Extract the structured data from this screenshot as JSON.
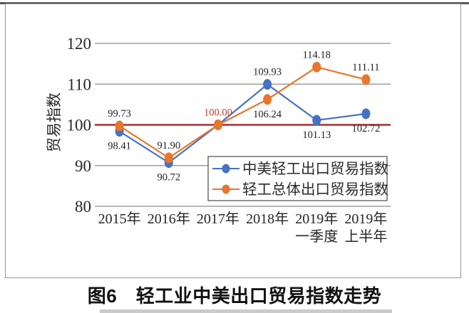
{
  "figure": {
    "caption": "图6　轻工业中美出口贸易指数走势"
  },
  "chart_data": {
    "type": "line",
    "title": "",
    "xlabel": "",
    "ylabel": "贸易指数",
    "ylim": [
      80,
      120
    ],
    "yticks": [
      80,
      90,
      100,
      110,
      120
    ],
    "grid": "horizontal-only",
    "gridline_color": "#8c8c8c",
    "text_color": "#262626",
    "data_label_color": "#1f1f1f",
    "categories": [
      {
        "label": "2015年",
        "sublabel": ""
      },
      {
        "label": "2016年",
        "sublabel": ""
      },
      {
        "label": "2017年",
        "sublabel": ""
      },
      {
        "label": "2018年",
        "sublabel": ""
      },
      {
        "label": "2019年",
        "sublabel": "一季度"
      },
      {
        "label": "2019年",
        "sublabel": "上半年"
      }
    ],
    "reference_line": {
      "value": 100,
      "color": "#aa2d32"
    },
    "series": [
      {
        "name": "中美轻工出口贸易指数",
        "color": "#4472c4",
        "values": [
          98.41,
          90.72,
          100.0,
          109.93,
          101.13,
          102.72
        ],
        "labels": [
          "98.41",
          "90.72",
          null,
          "109.93",
          "101.13",
          "102.72"
        ],
        "label_placement": [
          "below",
          "below",
          null,
          "above",
          "below",
          "below"
        ],
        "label_colors": [
          null,
          null,
          null,
          null,
          null,
          null
        ]
      },
      {
        "name": "轻工总体出口贸易指数",
        "color": "#e8762c",
        "values": [
          99.73,
          91.9,
          100.0,
          106.24,
          114.18,
          111.11
        ],
        "labels": [
          "99.73",
          "91.90",
          "100.00",
          "106.24",
          "114.18",
          "111.11"
        ],
        "label_placement": [
          "above",
          "above",
          "above",
          "below",
          "above",
          "above"
        ],
        "label_colors": [
          null,
          null,
          "#c33c2d",
          null,
          null,
          null
        ]
      }
    ],
    "legend": {
      "position": "inside-lower-right",
      "entries": [
        "中美轻工出口贸易指数",
        "轻工总体出口贸易指数"
      ]
    }
  }
}
